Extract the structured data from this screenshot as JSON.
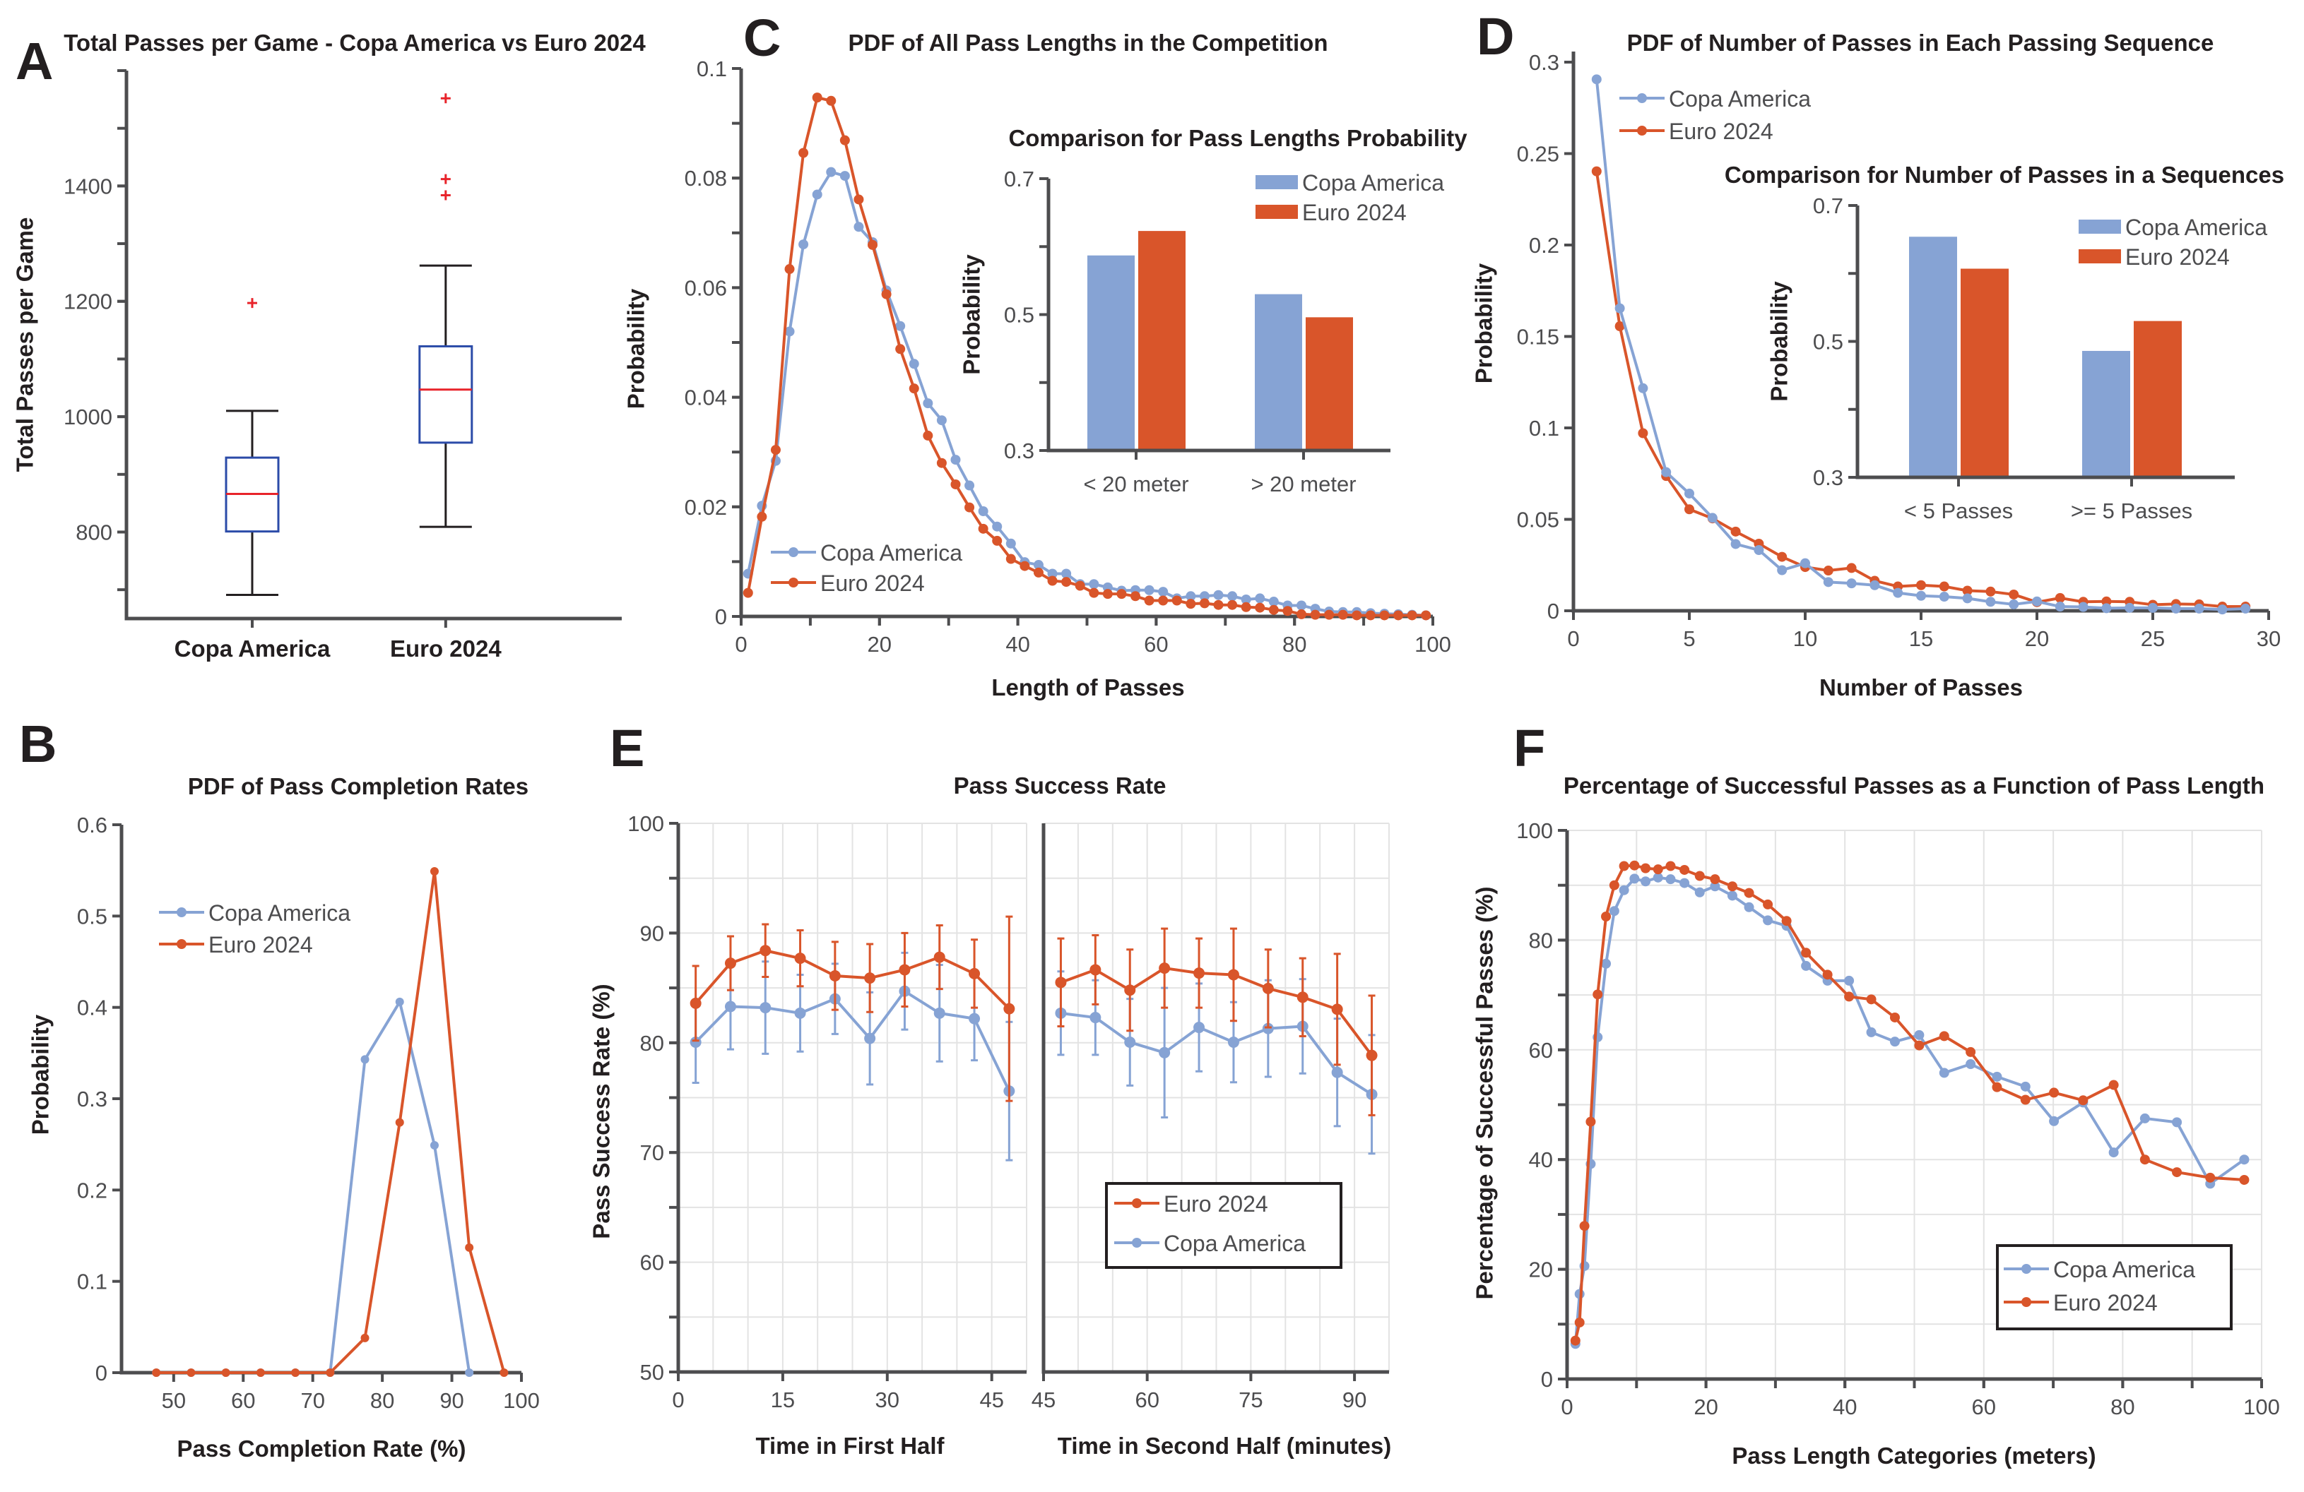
{
  "colors": {
    "copa": "#86a3d4",
    "euro": "#d9552a",
    "box": "#2b4ba8",
    "median": "#e8232a",
    "outlier": "#e8232a",
    "whisker": "#231f20"
  },
  "chart_data": [
    {
      "panel": "A",
      "type": "box",
      "title": "Total Passes per Game - Copa America vs Euro 2024",
      "ylabel": "Total Passes per Game",
      "categories": [
        "Copa America",
        "Euro 2024"
      ],
      "ylim": [
        650,
        1600
      ],
      "yticks": [
        800,
        1000,
        1200,
        1400
      ],
      "boxes": [
        {
          "whisker_low": 691,
          "q1": 801,
          "median": 866,
          "q3": 929,
          "whisker_high": 1010,
          "outliers": [
            1197
          ]
        },
        {
          "whisker_low": 809,
          "q1": 955,
          "median": 1047,
          "q3": 1122,
          "whisker_high": 1262,
          "outliers": [
            1384,
            1412,
            1552
          ]
        }
      ]
    },
    {
      "panel": "C",
      "type": "line",
      "title": "PDF of All Pass Lengths in the Competition",
      "xlabel": "Length of Passes",
      "ylabel": "Probability",
      "xlim": [
        0,
        100
      ],
      "ylim": [
        0,
        0.1
      ],
      "xticks": [
        0,
        20,
        40,
        60,
        80,
        100
      ],
      "yticks": [
        0,
        0.02,
        0.04,
        0.06,
        0.08,
        0.1
      ],
      "legend": "bottom-left",
      "x": [
        1,
        3,
        5,
        7,
        9,
        11,
        13,
        15,
        17,
        19,
        21,
        23,
        25,
        27,
        29,
        31,
        33,
        35,
        37,
        39,
        41,
        43,
        45,
        47,
        49,
        51,
        53,
        55,
        57,
        59,
        61,
        63,
        65,
        67,
        69,
        71,
        73,
        75,
        77,
        79,
        81,
        83,
        85,
        87,
        89,
        91,
        93,
        95,
        97,
        99
      ],
      "series": [
        {
          "name": "Copa America",
          "values": [
            0.0078,
            0.0202,
            0.0284,
            0.052,
            0.0679,
            0.077,
            0.0811,
            0.0804,
            0.0711,
            0.0683,
            0.0595,
            0.053,
            0.0461,
            0.0389,
            0.0358,
            0.0286,
            0.0239,
            0.0192,
            0.0164,
            0.0133,
            0.0099,
            0.0094,
            0.0078,
            0.0078,
            0.0059,
            0.0059,
            0.0053,
            0.0047,
            0.0048,
            0.0048,
            0.0045,
            0.0033,
            0.0037,
            0.0037,
            0.0039,
            0.0037,
            0.0031,
            0.0033,
            0.0027,
            0.002,
            0.002,
            0.0014,
            0.0009,
            0.0008,
            0.0008,
            0.0006,
            0.0005,
            0.0004,
            0.0003,
            0.0002
          ]
        },
        {
          "name": "Euro 2024",
          "values": [
            0.0043,
            0.0182,
            0.0304,
            0.0634,
            0.0846,
            0.0947,
            0.0941,
            0.0869,
            0.0761,
            0.0678,
            0.0588,
            0.0488,
            0.0416,
            0.033,
            0.028,
            0.0241,
            0.0199,
            0.016,
            0.0138,
            0.0105,
            0.0092,
            0.008,
            0.0065,
            0.0063,
            0.0056,
            0.0043,
            0.0041,
            0.0041,
            0.0037,
            0.0029,
            0.0029,
            0.0029,
            0.0023,
            0.0024,
            0.0021,
            0.0021,
            0.0017,
            0.0016,
            0.0012,
            0.001,
            0.0004,
            0.0003,
            0.0003,
            0.0003,
            0.0002,
            0.0002,
            0.0002,
            0.0002,
            0.0002,
            0.0002
          ]
        }
      ],
      "inset": {
        "type": "bar",
        "title": "Comparison for Pass Lengths Probability",
        "ylabel": "Probability",
        "categories": [
          "< 20 meter",
          "> 20 meter"
        ],
        "ylim": [
          0.3,
          0.7
        ],
        "yticks": [
          0.3,
          0.5,
          0.7
        ],
        "legend": "top-right",
        "series": [
          {
            "name": "Copa America",
            "values": [
              0.587,
              0.53
            ]
          },
          {
            "name": "Euro 2024",
            "values": [
              0.623,
              0.496
            ]
          }
        ]
      }
    },
    {
      "panel": "D",
      "type": "line",
      "title": "PDF of Number of Passes in Each Passing Sequence",
      "xlabel": "Number of Passes",
      "ylabel": "Probability",
      "xlim": [
        0,
        30
      ],
      "ylim": [
        0,
        0.3
      ],
      "xticks": [
        0,
        5,
        10,
        15,
        20,
        25,
        30
      ],
      "yticks": [
        0,
        0.05,
        0.1,
        0.15,
        0.2,
        0.25,
        0.3
      ],
      "legend": "top-left",
      "x": [
        1,
        2,
        3,
        4,
        5,
        6,
        7,
        8,
        9,
        10,
        11,
        12,
        13,
        14,
        15,
        16,
        17,
        18,
        19,
        20,
        21,
        22,
        23,
        24,
        25,
        26,
        27,
        28,
        29
      ],
      "series": [
        {
          "name": "Copa America",
          "values": [
            0.2906,
            0.1654,
            0.1217,
            0.0758,
            0.0641,
            0.0508,
            0.0365,
            0.0332,
            0.0222,
            0.026,
            0.0157,
            0.015,
            0.014,
            0.0098,
            0.0082,
            0.0077,
            0.0068,
            0.0049,
            0.0035,
            0.0051,
            0.0023,
            0.0021,
            0.0014,
            0.0016,
            0.0016,
            0.0012,
            0.0012,
            0.0007,
            0.0012
          ]
        },
        {
          "name": "Euro 2024",
          "values": [
            0.2403,
            0.1556,
            0.0971,
            0.0737,
            0.0555,
            0.0505,
            0.0433,
            0.0367,
            0.0295,
            0.0239,
            0.022,
            0.0234,
            0.0164,
            0.0133,
            0.014,
            0.0133,
            0.011,
            0.0105,
            0.0089,
            0.0047,
            0.007,
            0.0049,
            0.0051,
            0.0049,
            0.0033,
            0.0037,
            0.0035,
            0.0023,
            0.0023
          ]
        }
      ],
      "inset": {
        "type": "bar",
        "title": "Comparison for Number of Passes in a Sequences",
        "ylabel": "Probability",
        "categories": [
          "< 5 Passes",
          ">= 5 Passes"
        ],
        "ylim": [
          0.3,
          0.7
        ],
        "yticks": [
          0.3,
          0.5,
          0.7
        ],
        "legend": "top-right",
        "series": [
          {
            "name": "Copa America",
            "values": [
              0.654,
              0.486
            ]
          },
          {
            "name": "Euro 2024",
            "values": [
              0.607,
              0.53
            ]
          }
        ]
      }
    },
    {
      "panel": "B",
      "type": "line",
      "title": "PDF of Pass Completion Rates",
      "xlabel": "Pass Completion Rate (%)",
      "ylabel": "Probability",
      "xlim": [
        42.5,
        100
      ],
      "ylim": [
        0,
        0.6
      ],
      "xticks": [
        50,
        60,
        70,
        80,
        90,
        100
      ],
      "yticks": [
        0,
        0.1,
        0.2,
        0.3,
        0.4,
        0.5,
        0.6
      ],
      "legend": "top-left",
      "x": [
        47.5,
        52.5,
        57.5,
        62.5,
        67.5,
        72.5,
        77.5,
        82.5,
        87.5,
        92.5,
        97.5
      ],
      "series": [
        {
          "name": "Copa America",
          "values": [
            0,
            0,
            0,
            0,
            0,
            0,
            0.343,
            0.406,
            0.249,
            0,
            null
          ]
        },
        {
          "name": "Euro 2024",
          "values": [
            0,
            0,
            0,
            0,
            0,
            0,
            0.038,
            0.274,
            0.549,
            0.137,
            0
          ]
        }
      ]
    },
    {
      "panel": "E",
      "type": "line",
      "title": "Pass Success Rate",
      "ylabel": "Pass Success Rate (%)",
      "ylim": [
        50,
        100
      ],
      "yticks": [
        50,
        60,
        70,
        80,
        90,
        100
      ],
      "grid": true,
      "legend": "bottom-right",
      "legend_order": [
        "Euro 2024",
        "Copa America"
      ],
      "halves": [
        {
          "xlabel": "Time in First Half",
          "xlim": [
            0,
            50
          ],
          "xticks": [
            0,
            15,
            30,
            45
          ],
          "x": [
            2.5,
            7.5,
            12.5,
            17.5,
            22.5,
            27.5,
            32.5,
            37.5,
            42.5,
            47.5
          ],
          "series": [
            {
              "name": "Copa America",
              "values": [
                80.05,
                83.3,
                83.2,
                82.7,
                84.0,
                80.4,
                84.7,
                82.7,
                82.2,
                75.6
              ],
              "error": [
                3.7,
                3.9,
                4.2,
                3.5,
                3.2,
                4.2,
                3.5,
                4.4,
                3.8,
                6.3
              ]
            },
            {
              "name": "Euro 2024",
              "values": [
                83.6,
                87.25,
                88.4,
                87.7,
                86.1,
                85.9,
                86.65,
                87.8,
                86.3,
                83.1
              ],
              "error": [
                3.4,
                2.45,
                2.4,
                2.55,
                3.1,
                3.1,
                3.35,
                2.9,
                3.1,
                8.4
              ]
            }
          ]
        },
        {
          "xlabel": "Time in Second Half (minutes)",
          "xlim": [
            45,
            95
          ],
          "xticks": [
            45,
            60,
            75,
            90
          ],
          "x": [
            47.5,
            52.5,
            57.5,
            62.5,
            67.5,
            72.5,
            77.5,
            82.5,
            87.5,
            92.5
          ],
          "series": [
            {
              "name": "Copa America",
              "values": [
                82.7,
                82.3,
                80.05,
                79.1,
                81.4,
                80.05,
                81.3,
                81.5,
                77.3,
                75.3
              ],
              "error": [
                3.8,
                3.4,
                3.95,
                5.9,
                4.0,
                3.65,
                4.4,
                4.3,
                4.9,
                5.4
              ]
            },
            {
              "name": "Euro 2024",
              "values": [
                85.5,
                86.65,
                84.8,
                86.8,
                86.35,
                86.2,
                84.95,
                84.15,
                83.05,
                78.85
              ],
              "error": [
                4.0,
                3.15,
                3.7,
                3.6,
                3.15,
                4.2,
                3.55,
                3.55,
                5.05,
                5.45
              ]
            }
          ]
        }
      ]
    },
    {
      "panel": "F",
      "type": "line",
      "title": "Percentage of Successful Passes as a Function of Pass Length",
      "xlabel": "Pass Length Categories (meters)",
      "ylabel": "Percentage of Successful Passes (%)",
      "xlim": [
        0,
        100
      ],
      "ylim": [
        0,
        100
      ],
      "xticks": [
        0,
        20,
        40,
        60,
        80,
        100
      ],
      "yticks": [
        0,
        20,
        40,
        60,
        80,
        100
      ],
      "grid": true,
      "legend": "bottom-right",
      "x": [
        1.2,
        1.8,
        2.5,
        3.4,
        4.4,
        5.6,
        6.8,
        8.2,
        9.7,
        11.3,
        13.1,
        14.9,
        16.9,
        19.1,
        21.3,
        23.8,
        26.2,
        28.9,
        31.6,
        34.4,
        37.5,
        40.6,
        43.8,
        47.2,
        50.7,
        54.3,
        58.1,
        61.9,
        66.0,
        70.1,
        74.3,
        78.7,
        83.2,
        87.8,
        92.6,
        97.5
      ],
      "series": [
        {
          "name": "Copa America",
          "values": [
            6.4,
            15.5,
            20.6,
            39.2,
            62.3,
            75.7,
            85.3,
            89.1,
            91.2,
            90.7,
            91.4,
            91.1,
            90.4,
            88.7,
            89.8,
            88.1,
            86.0,
            83.6,
            82.6,
            75.3,
            72.6,
            72.6,
            63.2,
            61.5,
            62.7,
            55.8,
            57.4,
            55.1,
            53.3,
            47.0,
            50.4,
            41.3,
            47.5,
            46.8,
            35.6,
            40.0
          ]
        },
        {
          "name": "Euro 2024",
          "values": [
            7.0,
            10.3,
            27.9,
            46.9,
            70.1,
            84.3,
            90.0,
            93.5,
            93.6,
            93.1,
            92.9,
            93.5,
            92.8,
            91.7,
            91.1,
            89.8,
            88.6,
            86.5,
            83.5,
            77.7,
            73.7,
            69.7,
            69.2,
            65.9,
            60.8,
            62.5,
            59.6,
            53.2,
            50.9,
            52.2,
            50.8,
            53.6,
            40.0,
            37.7,
            36.7,
            36.3
          ]
        }
      ]
    }
  ]
}
